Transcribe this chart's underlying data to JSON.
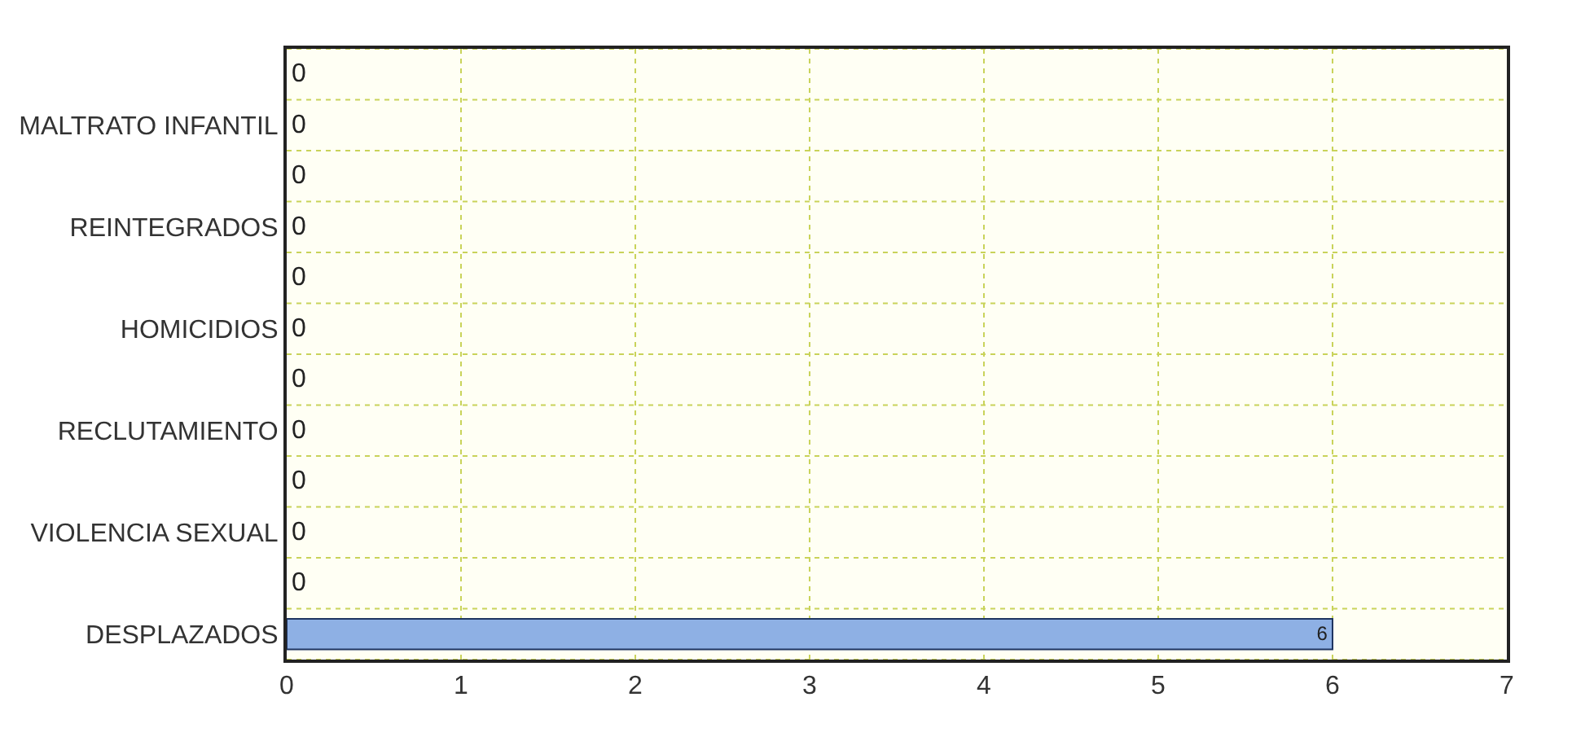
{
  "chart_data": {
    "type": "bar",
    "orientation": "horizontal",
    "categories": [
      null,
      "MALTRATO INFANTIL",
      null,
      "REINTEGRADOS",
      null,
      "HOMICIDIOS",
      null,
      "RECLUTAMIENTO",
      null,
      "VIOLENCIA SEXUAL",
      null,
      "DESPLAZADOS"
    ],
    "series": [
      {
        "color": "#8eb0e4",
        "values": [
          0,
          0,
          0,
          0,
          0,
          0,
          0,
          0,
          0,
          0,
          0,
          6
        ]
      }
    ],
    "xlim": [
      0,
      7
    ],
    "xticks": [
      0,
      1,
      2,
      3,
      4,
      5,
      6,
      7
    ],
    "grid": true,
    "data_labels": true
  }
}
